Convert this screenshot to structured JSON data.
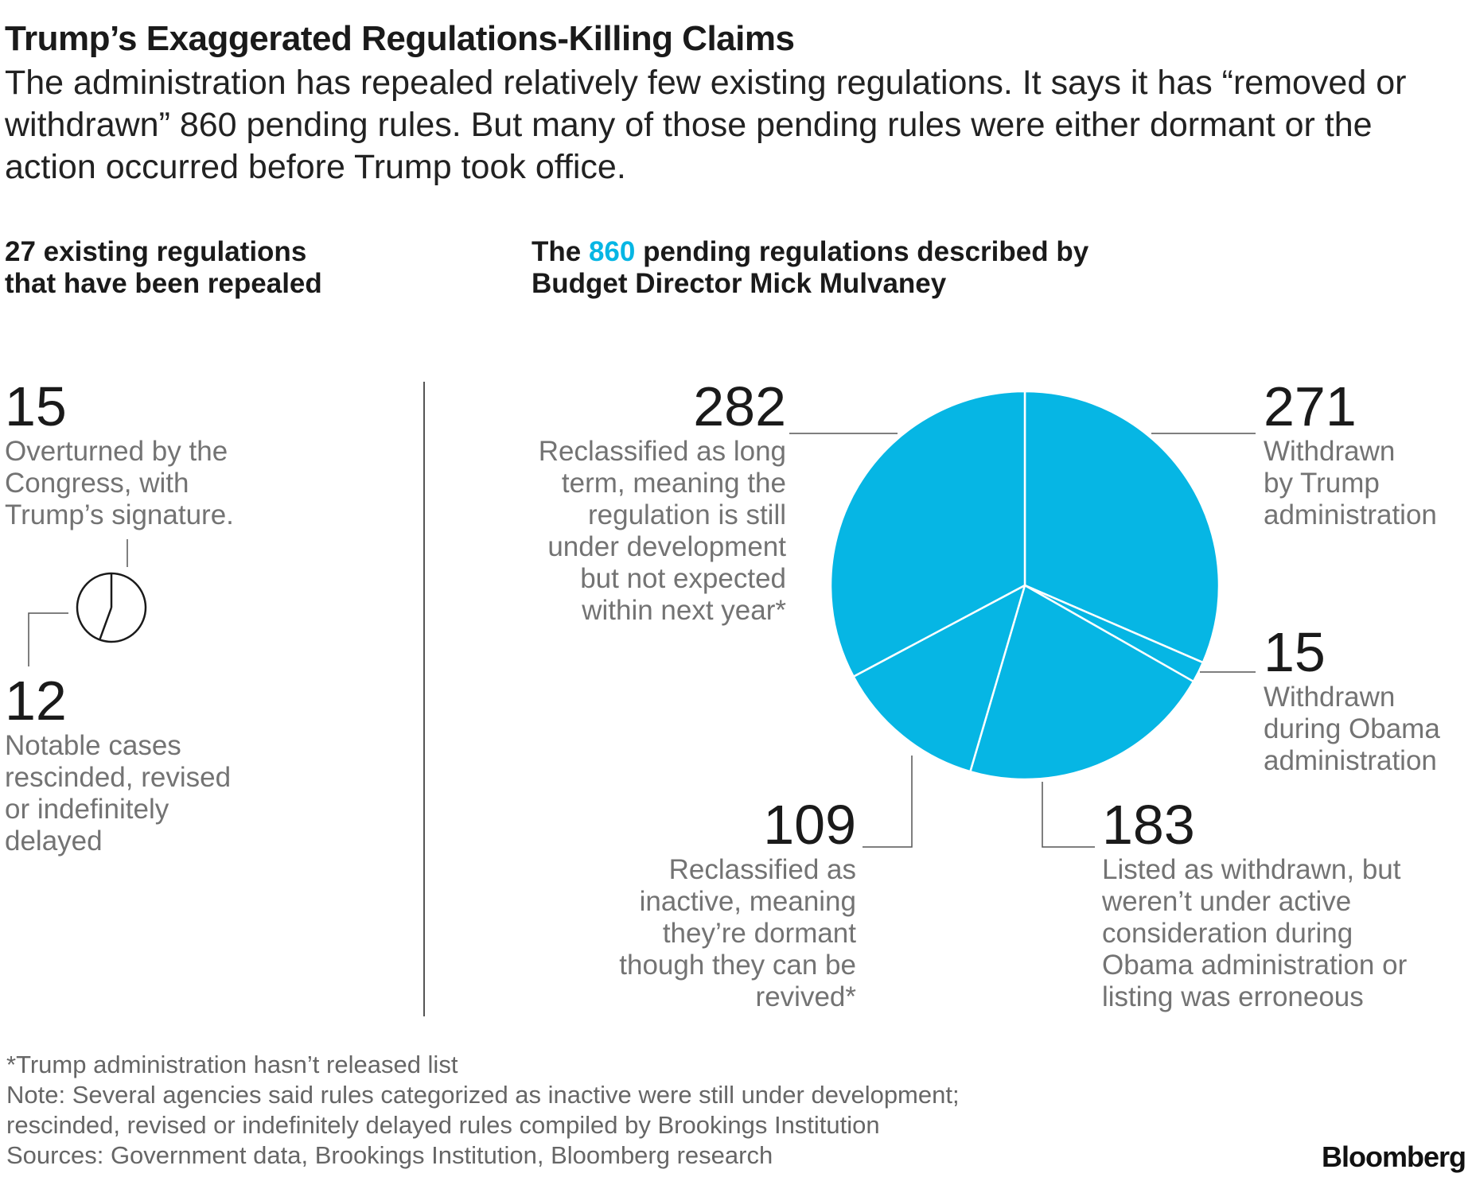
{
  "title": "Trump’s Exaggerated Regulations-Killing Claims",
  "subtitle": "The administration has repealed relatively few existing regulations. It says it has “removed or withdrawn” 860 pending rules. But many of those pending rules were either dormant or the action occurred before Trump took office.",
  "left_header": {
    "count": "27",
    "text": " existing regulations that have been repealed"
  },
  "right_header": {
    "prefix": "The ",
    "count": "860",
    "suffix": " pending regulations described by Budget Director Mick Mulvaney"
  },
  "colors": {
    "accent": "#06b6e4",
    "pie_fill": "#06b6e4",
    "muted_text": "#737373",
    "leader_line": "#555555"
  },
  "chart_data": [
    {
      "type": "pie",
      "title": "27 existing regulations that have been repealed",
      "style": "outline",
      "slices": [
        {
          "label": "Overturned by the Congress, with Trump’s signature.",
          "value": 15
        },
        {
          "label": "Notable cases rescinded, revised or indefinitely delayed",
          "value": 12
        }
      ]
    },
    {
      "type": "pie",
      "title": "The 860 pending regulations described by Budget Director Mick Mulvaney",
      "style": "filled",
      "slices": [
        {
          "label": "Withdrawn by Trump administration",
          "value": 271
        },
        {
          "label": "Withdrawn during Obama administration",
          "value": 15
        },
        {
          "label": "Listed as withdrawn, but weren’t under active consideration during Obama administration or listing was erroneous",
          "value": 183
        },
        {
          "label": "Reclassified as inactive, meaning they’re dormant though they can be revived*",
          "value": 109
        },
        {
          "label": "Reclassified as long term, meaning the regulation is still under development but not expected within next year*",
          "value": 282
        }
      ]
    }
  ],
  "left_items": [
    {
      "value": "15",
      "lines": [
        "Overturned by the",
        "Congress, with",
        "Trump’s signature."
      ]
    },
    {
      "value": "12",
      "lines": [
        "Notable cases",
        "rescinded, revised",
        "or indefinitely",
        "delayed"
      ]
    }
  ],
  "right_items": {
    "withdrawn_trump": {
      "value": "271",
      "lines": [
        "Withdrawn",
        "by Trump",
        "administration"
      ]
    },
    "withdrawn_obama": {
      "value": "15",
      "lines": [
        "Withdrawn",
        "during Obama",
        "administration"
      ]
    },
    "listed_withdrawn": {
      "value": "183",
      "lines": [
        "Listed as withdrawn, but",
        "weren’t under active",
        "consideration during",
        "Obama administration or",
        "listing was erroneous"
      ]
    },
    "inactive": {
      "value": "109",
      "lines": [
        "Reclassified as",
        "inactive, meaning",
        "they’re dormant",
        "though they can be",
        "revived*"
      ]
    },
    "long_term": {
      "value": "282",
      "lines": [
        "Reclassified as long",
        "term, meaning the",
        "regulation is still",
        "under development",
        "but not expected",
        "within next year*"
      ]
    }
  },
  "notes": {
    "footnote": "*Trump administration hasn’t released list",
    "note_line1": "Note: Several agencies said rules categorized as inactive were still under development;",
    "note_line2": "rescinded, revised or indefinitely delayed rules compiled by Brookings Institution",
    "sources": "Sources: Government data, Brookings Institution, Bloomberg research"
  },
  "logo": "Bloomberg"
}
